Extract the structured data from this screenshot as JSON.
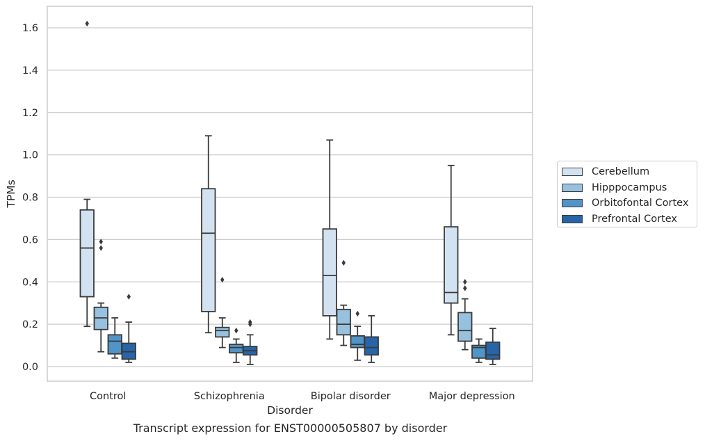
{
  "caption": "Transcript expression for ENST00000505807 by disorder",
  "chart_data": {
    "type": "boxplot",
    "title": "Transcript expression for ENST00000505807 by disorder",
    "xlabel": "Disorder",
    "ylabel": "TPMs",
    "ylim": [
      -0.067,
      1.7
    ],
    "yticks": [
      "0.0",
      "0.2",
      "0.4",
      "0.6",
      "0.8",
      "1.0",
      "1.2",
      "1.4",
      "1.6"
    ],
    "grid": "horizontal",
    "legend_position": "right",
    "categories": [
      "Control",
      "Schizophrenia",
      "Bipolar disorder",
      "Major depression"
    ],
    "series": [
      {
        "name": "Cerebellum",
        "color": "#d3e2f1",
        "boxes": [
          {
            "whislo": 0.19,
            "q1": 0.33,
            "med": 0.56,
            "q3": 0.74,
            "whishi": 0.79,
            "fliers": [
              1.62
            ]
          },
          {
            "whislo": 0.16,
            "q1": 0.26,
            "med": 0.63,
            "q3": 0.84,
            "whishi": 1.09,
            "fliers": []
          },
          {
            "whislo": 0.13,
            "q1": 0.24,
            "med": 0.43,
            "q3": 0.65,
            "whishi": 1.07,
            "fliers": []
          },
          {
            "whislo": 0.15,
            "q1": 0.3,
            "med": 0.35,
            "q3": 0.66,
            "whishi": 0.95,
            "fliers": []
          }
        ]
      },
      {
        "name": "Hipppocampus",
        "color": "#97c1de",
        "boxes": [
          {
            "whislo": 0.07,
            "q1": 0.175,
            "med": 0.23,
            "q3": 0.28,
            "whishi": 0.3,
            "fliers": [
              0.56,
              0.59
            ]
          },
          {
            "whislo": 0.09,
            "q1": 0.14,
            "med": 0.17,
            "q3": 0.185,
            "whishi": 0.23,
            "fliers": [
              0.41
            ]
          },
          {
            "whislo": 0.1,
            "q1": 0.15,
            "med": 0.2,
            "q3": 0.27,
            "whishi": 0.29,
            "fliers": [
              0.49
            ]
          },
          {
            "whislo": 0.08,
            "q1": 0.12,
            "med": 0.17,
            "q3": 0.255,
            "whishi": 0.32,
            "fliers": [
              0.37,
              0.4
            ]
          }
        ]
      },
      {
        "name": "Orbitofontal Cortex",
        "color": "#5194c7",
        "boxes": [
          {
            "whislo": 0.04,
            "q1": 0.06,
            "med": 0.12,
            "q3": 0.15,
            "whishi": 0.23,
            "fliers": []
          },
          {
            "whislo": 0.02,
            "q1": 0.065,
            "med": 0.09,
            "q3": 0.105,
            "whishi": 0.13,
            "fliers": [
              0.17
            ]
          },
          {
            "whislo": 0.03,
            "q1": 0.09,
            "med": 0.105,
            "q3": 0.145,
            "whishi": 0.19,
            "fliers": [
              0.25
            ]
          },
          {
            "whislo": 0.02,
            "q1": 0.04,
            "med": 0.09,
            "q3": 0.1,
            "whishi": 0.13,
            "fliers": []
          }
        ]
      },
      {
        "name": "Prefrontal Cortex",
        "color": "#2765a8",
        "boxes": [
          {
            "whislo": 0.02,
            "q1": 0.035,
            "med": 0.07,
            "q3": 0.11,
            "whishi": 0.21,
            "fliers": [
              0.33
            ]
          },
          {
            "whislo": 0.01,
            "q1": 0.055,
            "med": 0.075,
            "q3": 0.095,
            "whishi": 0.15,
            "fliers": [
              0.2,
              0.21
            ]
          },
          {
            "whislo": 0.02,
            "q1": 0.055,
            "med": 0.09,
            "q3": 0.14,
            "whishi": 0.24,
            "fliers": []
          },
          {
            "whislo": 0.01,
            "q1": 0.035,
            "med": 0.055,
            "q3": 0.115,
            "whishi": 0.18,
            "fliers": []
          }
        ]
      }
    ]
  }
}
